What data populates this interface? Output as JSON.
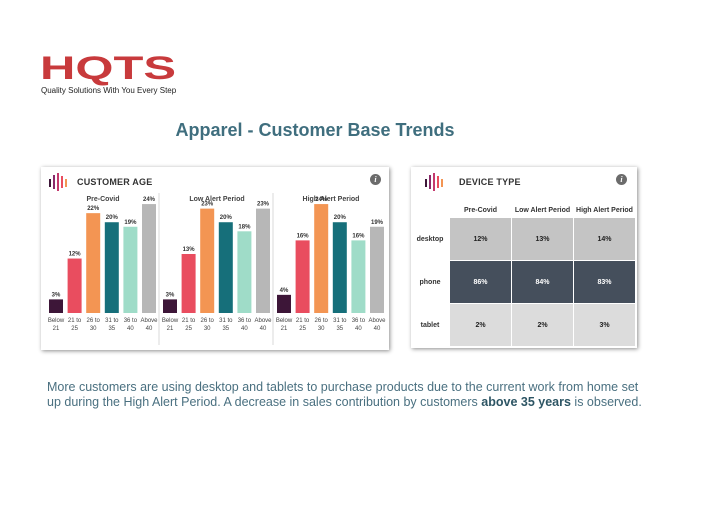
{
  "brand": {
    "logo_text": "HQTS",
    "tagline": "Quality Solutions With You Every Step",
    "colors": {
      "logo_red": "#c83a3c",
      "title_teal": "#3f6e7e"
    }
  },
  "title": "Apparel - Customer Base Trends",
  "age_panel": {
    "title": "CUSTOMER AGE",
    "icon": "bar-logo-icon",
    "info_icon": "info-icon"
  },
  "device_panel": {
    "title": "DEVICE TYPE",
    "icon": "bar-logo-icon",
    "info_icon": "info-icon"
  },
  "caption": {
    "part1": "More customers are using desktop and tablets to purchase products due to the current work from home set up during the High Alert Period. A decrease in sales contribution by customers ",
    "bold": "above 35 years",
    "part2": " is observed."
  },
  "chart_data": [
    {
      "type": "bar",
      "title": "CUSTOMER AGE",
      "panels": [
        "Pre-Covid",
        "Low Alert Period",
        "High Alert Period"
      ],
      "categories": [
        "Below 21",
        "21 to 25",
        "26 to 30",
        "31 to 35",
        "36 to 40",
        "Above 40"
      ],
      "category_lines": [
        [
          "Below",
          "21"
        ],
        [
          "21 to",
          "25"
        ],
        [
          "26 to",
          "30"
        ],
        [
          "31 to",
          "35"
        ],
        [
          "36 to",
          "40"
        ],
        [
          "Above",
          "40"
        ]
      ],
      "series": [
        {
          "name": "Pre-Covid",
          "values": [
            3,
            12,
            22,
            20,
            19,
            24
          ]
        },
        {
          "name": "Low Alert Period",
          "values": [
            3,
            13,
            23,
            20,
            18,
            23
          ]
        },
        {
          "name": "High Alert Period",
          "values": [
            4,
            16,
            24,
            20,
            16,
            19
          ]
        }
      ],
      "value_suffix": "%",
      "colors": [
        "#3d1638",
        "#e94d5f",
        "#f39553",
        "#166f7a",
        "#9fdcc8",
        "#b7b7b7"
      ],
      "ylim": [
        0,
        26
      ],
      "grid": false
    },
    {
      "type": "heatmap",
      "title": "DEVICE TYPE",
      "columns": [
        "Pre-Covid",
        "Low Alert Period",
        "High Alert Period"
      ],
      "rows": [
        "desktop",
        "phone",
        "tablet"
      ],
      "values": [
        [
          12,
          13,
          14
        ],
        [
          86,
          84,
          83
        ],
        [
          2,
          2,
          3
        ]
      ],
      "value_suffix": "%",
      "colors": {
        "high": "#454f5c",
        "mid": "#c4c4c4",
        "low": "#dcdcdc"
      }
    }
  ]
}
